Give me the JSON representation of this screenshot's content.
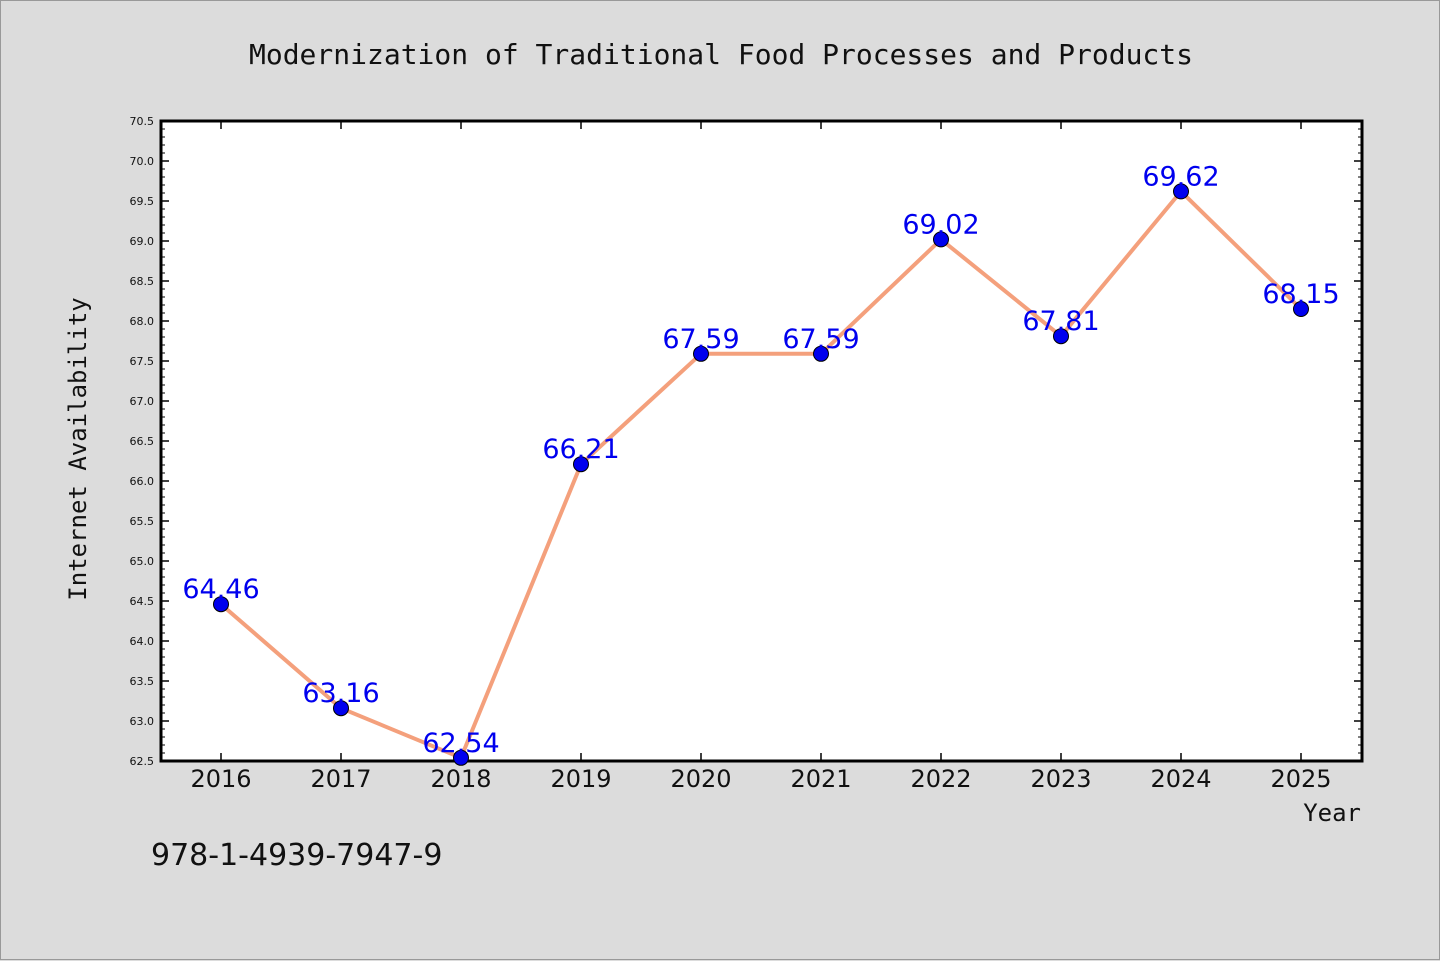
{
  "chart_data": {
    "type": "line",
    "title": "Modernization of Traditional Food Processes and Products",
    "xlabel": "Year",
    "ylabel": "Internet Availability",
    "categories": [
      "2016",
      "2017",
      "2018",
      "2019",
      "2020",
      "2021",
      "2022",
      "2023",
      "2024",
      "2025"
    ],
    "series": [
      {
        "values": [
          64.46,
          63.16,
          62.54,
          66.21,
          67.59,
          67.59,
          69.02,
          67.81,
          69.62,
          68.15
        ],
        "labels": [
          "64.46",
          "63.16",
          "62.54",
          "66.21",
          "67.59",
          "67.59",
          "69.02",
          "67.81",
          "69.62",
          "68.15"
        ]
      }
    ],
    "ylim": [
      62.5,
      70.5
    ],
    "yticks": [
      "62.5",
      "63.0",
      "63.5",
      "64.0",
      "64.5",
      "65.0",
      "65.5",
      "66.0",
      "66.5",
      "67.0",
      "67.5",
      "68.0",
      "68.5",
      "69.0",
      "69.5",
      "70.0",
      "70.5"
    ],
    "grid": false,
    "legend": "none",
    "line_color": "#f4a07c",
    "marker_color": "#0000ee",
    "label_color": "#0000ee"
  },
  "annotation_text": "978-1-4939-7947-9"
}
